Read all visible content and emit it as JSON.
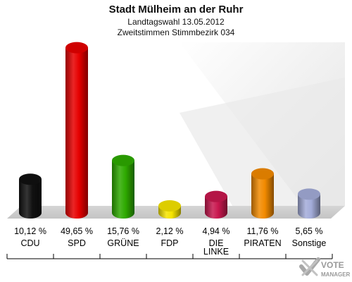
{
  "chart_data": {
    "type": "bar",
    "title": "Stadt Mülheim an der Ruhr",
    "subtitle_1": "Landtagswahl 13.05.2012",
    "subtitle_2": "Zweitstimmen Stimmbezirk 034",
    "categories": [
      "CDU",
      "SPD",
      "GRÜNE",
      "FDP",
      "DIE LINKE",
      "PIRATEN",
      "Sonstige"
    ],
    "category_lines": [
      [
        "CDU"
      ],
      [
        "SPD"
      ],
      [
        "GRÜNE"
      ],
      [
        "FDP"
      ],
      [
        "DIE",
        "LINKE"
      ],
      [
        "PIRATEN"
      ],
      [
        "Sonstige"
      ]
    ],
    "values": [
      10.12,
      49.65,
      15.76,
      2.12,
      4.94,
      11.76,
      5.65
    ],
    "value_labels": [
      "10,12 %",
      "49,65 %",
      "15,76 %",
      "2,12 %",
      "4,94 %",
      "11,76 %",
      "5,65 %"
    ],
    "colors": [
      "#111111",
      "#e60000",
      "#2eaa00",
      "#f5e400",
      "#c8174e",
      "#f28a00",
      "#a3acd9"
    ],
    "ylim": [
      0,
      50
    ],
    "grid": false,
    "legend": "none"
  },
  "logo": {
    "line1": "VOTE",
    "line2": "MANAGER"
  }
}
